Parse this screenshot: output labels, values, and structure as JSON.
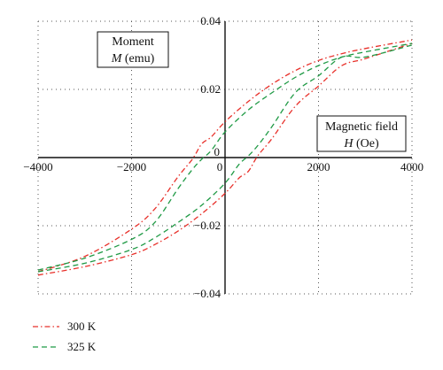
{
  "chart_data": {
    "type": "line",
    "title": "",
    "xlabel": {
      "line1": "Magnetic field",
      "symbol": "H",
      "unit": " (Oe)"
    },
    "ylabel": {
      "line1": "Moment",
      "symbol": "M",
      "unit": " (emu)"
    },
    "xlim": [
      -4000,
      4000
    ],
    "ylim": [
      -0.04,
      0.04
    ],
    "x_ticks": [
      -4000,
      -2000,
      0,
      2000,
      4000
    ],
    "x_tick_labels": [
      "−4000",
      "−2000",
      "0",
      "2000",
      "4000"
    ],
    "y_ticks": [
      -0.04,
      -0.02,
      0,
      0.02,
      0.04
    ],
    "y_tick_labels": [
      "−0.04",
      "−0.02",
      "0",
      "0.02",
      "0.04"
    ],
    "grid": true,
    "legend_position": "bottom-left",
    "series": [
      {
        "name": "300 K",
        "color": "#e8302a",
        "dash": "dash-dot",
        "upper_branch": {
          "x": [
            -4000,
            -3000,
            -2000,
            -1500,
            -1000,
            -700,
            -500,
            -300,
            0,
            500,
            1000,
            1500,
            2000,
            2500,
            3000,
            4000
          ],
          "y": [
            -0.0335,
            -0.029,
            -0.021,
            -0.015,
            -0.0055,
            -0.0005,
            0.004,
            0.006,
            0.0105,
            0.0165,
            0.0215,
            0.0255,
            0.0285,
            0.0305,
            0.032,
            0.0345
          ]
        },
        "lower_branch": {
          "x": [
            -4000,
            -3000,
            -2000,
            -1500,
            -1000,
            -500,
            0,
            300,
            500,
            700,
            1000,
            1500,
            2000,
            2500,
            3000,
            4000
          ],
          "y": [
            -0.0345,
            -0.032,
            -0.0285,
            -0.0255,
            -0.0215,
            -0.0165,
            -0.0105,
            -0.006,
            -0.004,
            0.0005,
            0.0055,
            0.015,
            0.021,
            0.027,
            0.029,
            0.0335
          ]
        }
      },
      {
        "name": "325 K",
        "color": "#1f9a45",
        "dash": "dashed",
        "upper_branch": {
          "x": [
            -4000,
            -3000,
            -2000,
            -1500,
            -1000,
            -700,
            -500,
            -300,
            0,
            500,
            1000,
            1500,
            2000,
            2500,
            3000,
            4000
          ],
          "y": [
            -0.033,
            -0.0295,
            -0.024,
            -0.019,
            -0.009,
            -0.0035,
            -0.0005,
            0.002,
            0.0075,
            0.014,
            0.019,
            0.0235,
            0.027,
            0.0295,
            0.031,
            0.0335
          ]
        },
        "lower_branch": {
          "x": [
            -4000,
            -3000,
            -2000,
            -1500,
            -1000,
            -500,
            0,
            300,
            500,
            700,
            1000,
            1500,
            2000,
            2500,
            3000,
            4000
          ],
          "y": [
            -0.0335,
            -0.031,
            -0.027,
            -0.0235,
            -0.019,
            -0.014,
            -0.0075,
            -0.002,
            0.0005,
            0.0035,
            0.009,
            0.019,
            0.024,
            0.0295,
            0.0295,
            0.033
          ]
        }
      }
    ]
  }
}
